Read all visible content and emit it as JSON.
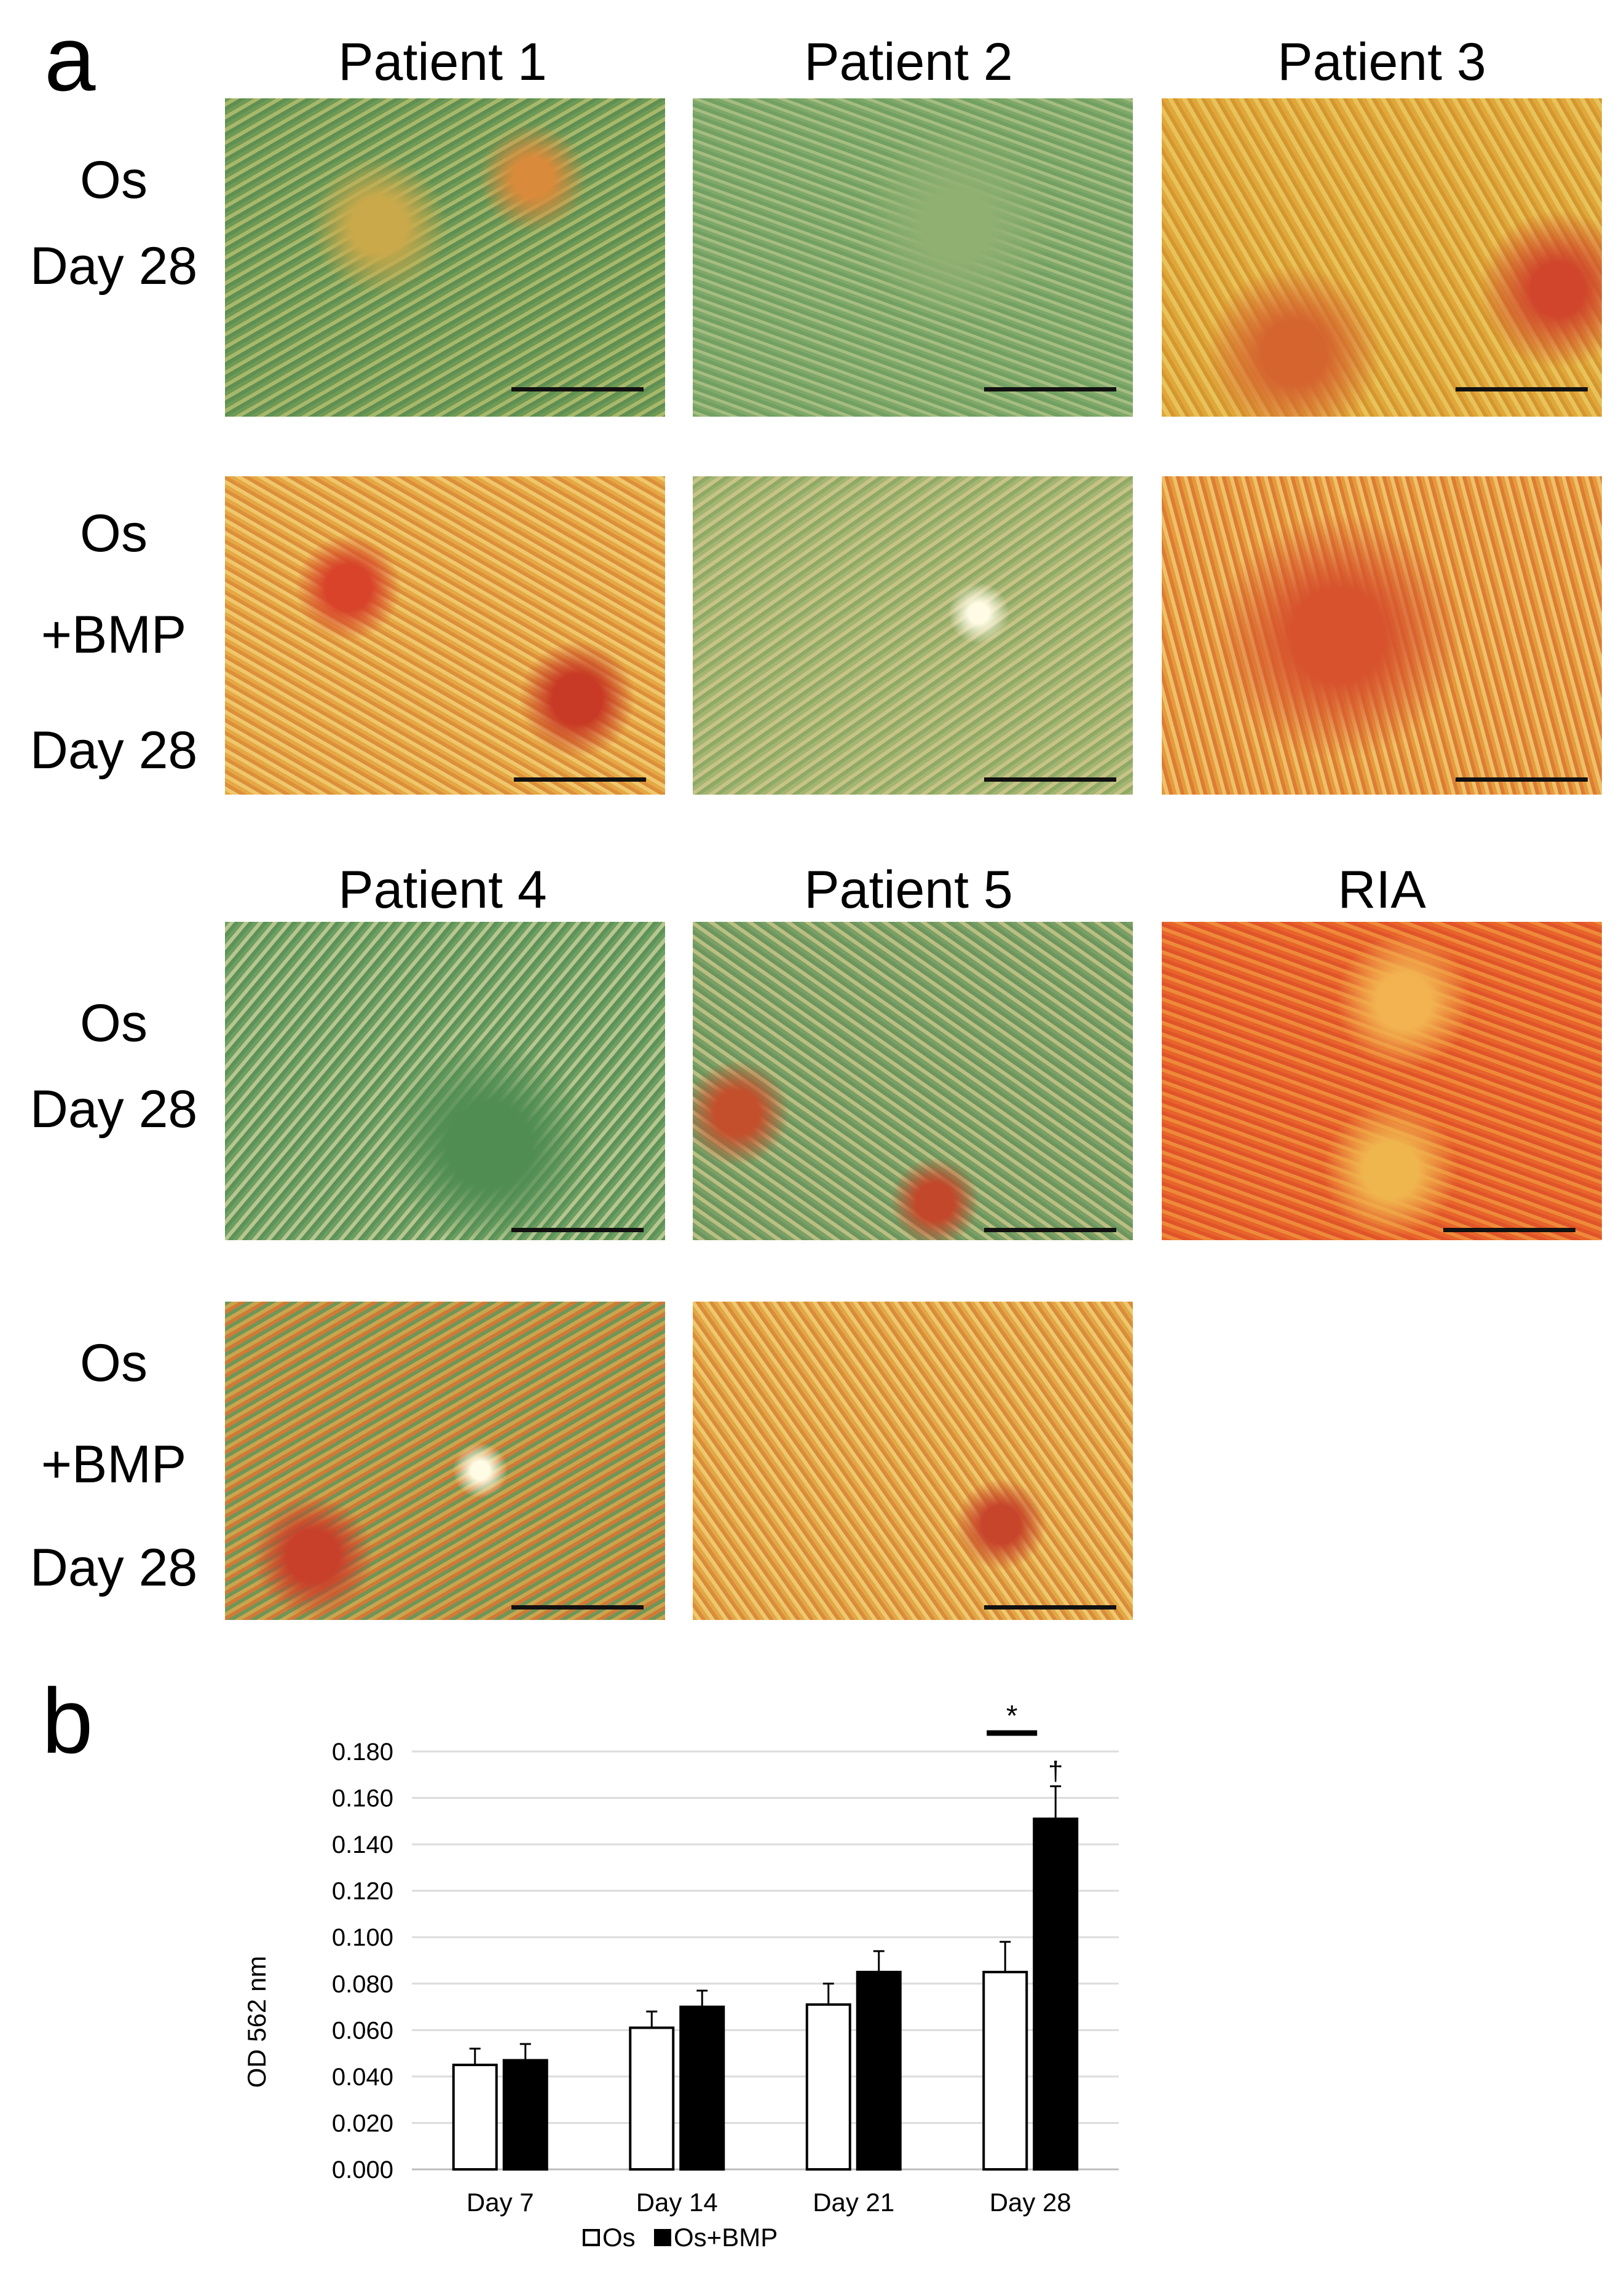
{
  "panel_a": {
    "letter": "a",
    "columns_top": [
      "Patient 1",
      "Patient 2",
      "Patient 3"
    ],
    "columns_bottom": [
      "Patient 4",
      "Patient 5",
      "RIA"
    ],
    "row_os": [
      "Os",
      "Day 28"
    ],
    "row_bmp": [
      "Os",
      "+BMP",
      "Day 28"
    ]
  },
  "panel_b": {
    "letter": "b"
  },
  "chart_data": {
    "type": "bar",
    "categories": [
      "Day 7",
      "Day 14",
      "Day 21",
      "Day 28"
    ],
    "series": [
      {
        "name": "Os",
        "values": [
          0.045,
          0.061,
          0.071,
          0.085
        ],
        "errors": [
          0.007,
          0.007,
          0.009,
          0.013
        ],
        "color": "#ffffff"
      },
      {
        "name": "Os+BMP",
        "values": [
          0.047,
          0.07,
          0.085,
          0.151
        ],
        "errors": [
          0.007,
          0.007,
          0.009,
          0.014
        ],
        "color": "#000000"
      }
    ],
    "ylabel": "OD 562 nm",
    "ylim": [
      0,
      0.18
    ],
    "yticks": [
      "0.000",
      "0.020",
      "0.040",
      "0.060",
      "0.080",
      "0.100",
      "0.120",
      "0.140",
      "0.160",
      "0.180"
    ],
    "grid": true,
    "legend_position": "bottom",
    "annotations": [
      {
        "text": "*",
        "category": "Day 28",
        "meaning": "significance bar between Os and Os+BMP"
      },
      {
        "text": "†",
        "category": "Day 28",
        "series": "Os+BMP"
      }
    ]
  }
}
